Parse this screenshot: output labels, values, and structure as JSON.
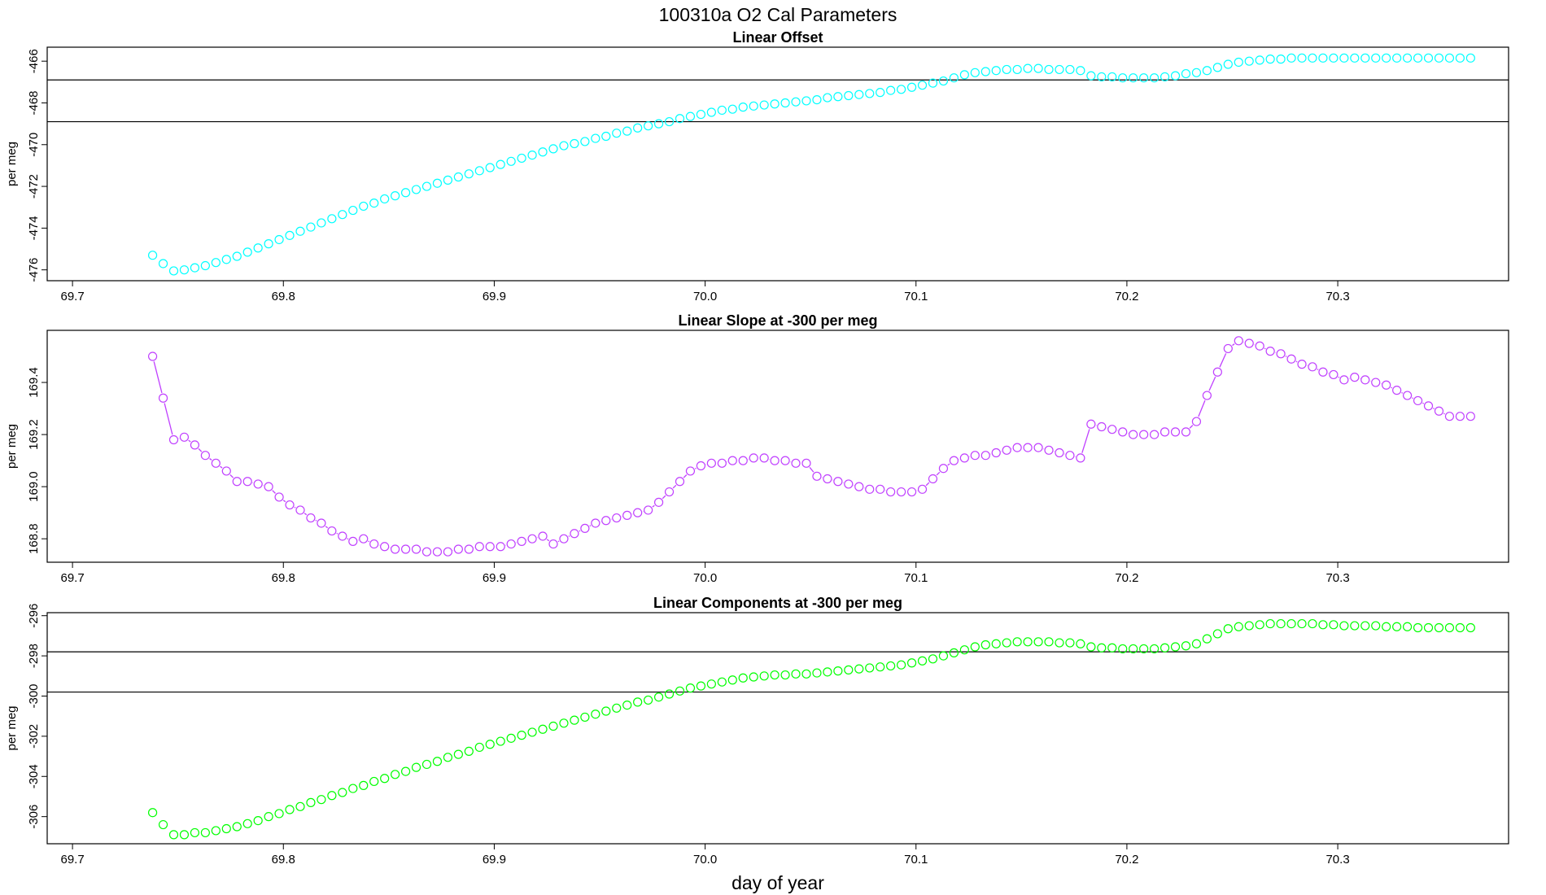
{
  "title": "100310a   O2 Cal Parameters",
  "xlabel": "day of year",
  "chart_data": [
    {
      "type": "scatter",
      "title": "Linear Offset",
      "ylabel": "per meg",
      "color": "#00ffff",
      "connect": false,
      "xlim": [
        69.688,
        70.381
      ],
      "xticks": [
        69.7,
        69.8,
        69.9,
        {
          "value": 70,
          "label": "70.0"
        },
        70.1,
        70.2,
        70.3
      ],
      "ylim": [
        -476.52,
        -465.33
      ],
      "yticks": [
        -476,
        -474,
        -472,
        -470,
        -468,
        -466
      ],
      "hlines": [
        -466.9,
        -468.9
      ],
      "x": [
        69.738,
        69.743,
        69.748,
        69.753,
        69.758,
        69.763,
        69.768,
        69.773,
        69.778,
        69.783,
        69.788,
        69.793,
        69.798,
        69.803,
        69.808,
        69.813,
        69.818,
        69.823,
        69.828,
        69.833,
        69.838,
        69.843,
        69.848,
        69.853,
        69.858,
        69.863,
        69.868,
        69.873,
        69.878,
        69.883,
        69.888,
        69.893,
        69.898,
        69.903,
        69.908,
        69.913,
        69.918,
        69.923,
        69.928,
        69.933,
        69.938,
        69.943,
        69.948,
        69.953,
        69.958,
        69.963,
        69.968,
        69.973,
        69.978,
        69.983,
        69.988,
        69.993,
        69.998,
        70.003,
        70.008,
        70.013,
        70.018,
        70.023,
        70.028,
        70.033,
        70.038,
        70.043,
        70.048,
        70.053,
        70.058,
        70.063,
        70.068,
        70.073,
        70.078,
        70.083,
        70.088,
        70.093,
        70.098,
        70.103,
        70.108,
        70.113,
        70.118,
        70.123,
        70.128,
        70.133,
        70.138,
        70.143,
        70.148,
        70.153,
        70.158,
        70.163,
        70.168,
        70.173,
        70.178,
        70.183,
        70.188,
        70.193,
        70.198,
        70.203,
        70.208,
        70.213,
        70.218,
        70.223,
        70.228,
        70.233,
        70.238,
        70.243,
        70.248,
        70.253,
        70.258,
        70.263,
        70.268,
        70.273,
        70.278,
        70.283,
        70.288,
        70.293,
        70.298,
        70.303,
        70.308,
        70.313,
        70.318,
        70.323,
        70.328,
        70.333,
        70.338,
        70.343,
        70.348,
        70.353,
        70.358,
        70.363
      ],
      "values": [
        -475.3,
        -475.7,
        -476.05,
        -476.0,
        -475.9,
        -475.8,
        -475.65,
        -475.5,
        -475.35,
        -475.15,
        -474.95,
        -474.75,
        -474.55,
        -474.35,
        -474.15,
        -473.95,
        -473.75,
        -473.55,
        -473.35,
        -473.15,
        -472.95,
        -472.8,
        -472.6,
        -472.45,
        -472.3,
        -472.15,
        -472.0,
        -471.85,
        -471.7,
        -471.55,
        -471.4,
        -471.25,
        -471.1,
        -470.95,
        -470.8,
        -470.65,
        -470.5,
        -470.35,
        -470.2,
        -470.05,
        -469.95,
        -469.85,
        -469.7,
        -469.6,
        -469.45,
        -469.35,
        -469.2,
        -469.1,
        -469.0,
        -468.9,
        -468.75,
        -468.65,
        -468.55,
        -468.45,
        -468.35,
        -468.3,
        -468.2,
        -468.15,
        -468.1,
        -468.05,
        -468.0,
        -467.95,
        -467.9,
        -467.85,
        -467.75,
        -467.7,
        -467.65,
        -467.6,
        -467.55,
        -467.5,
        -467.4,
        -467.35,
        -467.25,
        -467.15,
        -467.05,
        -466.95,
        -466.8,
        -466.65,
        -466.55,
        -466.5,
        -466.45,
        -466.4,
        -466.4,
        -466.35,
        -466.35,
        -466.4,
        -466.4,
        -466.4,
        -466.45,
        -466.7,
        -466.75,
        -466.75,
        -466.8,
        -466.8,
        -466.8,
        -466.8,
        -466.75,
        -466.7,
        -466.6,
        -466.55,
        -466.45,
        -466.3,
        -466.15,
        -466.05,
        -466.0,
        -465.95,
        -465.9,
        -465.9,
        -465.85,
        -465.85,
        -465.85,
        -465.85,
        -465.85,
        -465.85,
        -465.85,
        -465.85,
        -465.85,
        -465.85,
        -465.85,
        -465.85,
        -465.85,
        -465.85,
        -465.85,
        -465.85,
        -465.85,
        -465.85
      ]
    },
    {
      "type": "scatter",
      "title": "Linear Slope at -300 per meg",
      "ylabel": "per meg",
      "color": "#c040ff",
      "connect": true,
      "xlim": [
        69.688,
        70.381
      ],
      "xticks": [
        69.7,
        69.8,
        69.9,
        {
          "value": 70,
          "label": "70.0"
        },
        70.1,
        70.2,
        70.3
      ],
      "ylim": [
        168.71,
        169.6
      ],
      "yticks": [
        168.8,
        {
          "value": 169,
          "label": "169.0"
        },
        169.2,
        169.4
      ],
      "x": [
        69.738,
        69.743,
        69.748,
        69.753,
        69.758,
        69.763,
        69.768,
        69.773,
        69.778,
        69.783,
        69.788,
        69.793,
        69.798,
        69.803,
        69.808,
        69.813,
        69.818,
        69.823,
        69.828,
        69.833,
        69.838,
        69.843,
        69.848,
        69.853,
        69.858,
        69.863,
        69.868,
        69.873,
        69.878,
        69.883,
        69.888,
        69.893,
        69.898,
        69.903,
        69.908,
        69.913,
        69.918,
        69.923,
        69.928,
        69.933,
        69.938,
        69.943,
        69.948,
        69.953,
        69.958,
        69.963,
        69.968,
        69.973,
        69.978,
        69.983,
        69.988,
        69.993,
        69.998,
        70.003,
        70.008,
        70.013,
        70.018,
        70.023,
        70.028,
        70.033,
        70.038,
        70.043,
        70.048,
        70.053,
        70.058,
        70.063,
        70.068,
        70.073,
        70.078,
        70.083,
        70.088,
        70.093,
        70.098,
        70.103,
        70.108,
        70.113,
        70.118,
        70.123,
        70.128,
        70.133,
        70.138,
        70.143,
        70.148,
        70.153,
        70.158,
        70.163,
        70.168,
        70.173,
        70.178,
        70.183,
        70.188,
        70.193,
        70.198,
        70.203,
        70.208,
        70.213,
        70.218,
        70.223,
        70.228,
        70.233,
        70.238,
        70.243,
        70.248,
        70.253,
        70.258,
        70.263,
        70.268,
        70.273,
        70.278,
        70.283,
        70.288,
        70.293,
        70.298,
        70.303,
        70.308,
        70.313,
        70.318,
        70.323,
        70.328,
        70.333,
        70.338,
        70.343,
        70.348,
        70.353,
        70.358,
        70.363
      ],
      "values": [
        169.5,
        169.34,
        169.18,
        169.19,
        169.16,
        169.12,
        169.09,
        169.06,
        169.02,
        169.02,
        169.01,
        169.0,
        168.96,
        168.93,
        168.91,
        168.88,
        168.86,
        168.83,
        168.81,
        168.79,
        168.8,
        168.78,
        168.77,
        168.76,
        168.76,
        168.76,
        168.75,
        168.75,
        168.75,
        168.76,
        168.76,
        168.77,
        168.77,
        168.77,
        168.78,
        168.79,
        168.8,
        168.81,
        168.78,
        168.8,
        168.82,
        168.84,
        168.86,
        168.87,
        168.88,
        168.89,
        168.9,
        168.91,
        168.94,
        168.98,
        169.02,
        169.06,
        169.08,
        169.09,
        169.09,
        169.1,
        169.1,
        169.11,
        169.11,
        169.1,
        169.1,
        169.09,
        169.09,
        169.04,
        169.03,
        169.02,
        169.01,
        169.0,
        168.99,
        168.99,
        168.98,
        168.98,
        168.98,
        168.99,
        169.03,
        169.07,
        169.1,
        169.11,
        169.12,
        169.12,
        169.13,
        169.14,
        169.15,
        169.15,
        169.15,
        169.14,
        169.13,
        169.12,
        169.11,
        169.24,
        169.23,
        169.22,
        169.21,
        169.2,
        169.2,
        169.2,
        169.21,
        169.21,
        169.21,
        169.25,
        169.35,
        169.44,
        169.53,
        169.56,
        169.55,
        169.54,
        169.52,
        169.51,
        169.49,
        169.47,
        169.46,
        169.44,
        169.43,
        169.41,
        169.42,
        169.41,
        169.4,
        169.39,
        169.37,
        169.35,
        169.33,
        169.31,
        169.29,
        169.27,
        169.27,
        169.27
      ]
    },
    {
      "type": "scatter",
      "title": "Linear Components at -300 per meg",
      "ylabel": "per meg",
      "color": "#00ff00",
      "connect": false,
      "xlim": [
        69.688,
        70.381
      ],
      "xticks": [
        69.7,
        69.8,
        69.9,
        {
          "value": 70,
          "label": "70.0"
        },
        70.1,
        70.2,
        70.3
      ],
      "ylim": [
        -307.35,
        -295.85
      ],
      "yticks": [
        -306,
        -304,
        -302,
        -300,
        -298,
        -296
      ],
      "hlines": [
        -297.8,
        -299.8
      ],
      "x": [
        69.738,
        69.743,
        69.748,
        69.753,
        69.758,
        69.763,
        69.768,
        69.773,
        69.778,
        69.783,
        69.788,
        69.793,
        69.798,
        69.803,
        69.808,
        69.813,
        69.818,
        69.823,
        69.828,
        69.833,
        69.838,
        69.843,
        69.848,
        69.853,
        69.858,
        69.863,
        69.868,
        69.873,
        69.878,
        69.883,
        69.888,
        69.893,
        69.898,
        69.903,
        69.908,
        69.913,
        69.918,
        69.923,
        69.928,
        69.933,
        69.938,
        69.943,
        69.948,
        69.953,
        69.958,
        69.963,
        69.968,
        69.973,
        69.978,
        69.983,
        69.988,
        69.993,
        69.998,
        70.003,
        70.008,
        70.013,
        70.018,
        70.023,
        70.028,
        70.033,
        70.038,
        70.043,
        70.048,
        70.053,
        70.058,
        70.063,
        70.068,
        70.073,
        70.078,
        70.083,
        70.088,
        70.093,
        70.098,
        70.103,
        70.108,
        70.113,
        70.118,
        70.123,
        70.128,
        70.133,
        70.138,
        70.143,
        70.148,
        70.153,
        70.158,
        70.163,
        70.168,
        70.173,
        70.178,
        70.183,
        70.188,
        70.193,
        70.198,
        70.203,
        70.208,
        70.213,
        70.218,
        70.223,
        70.228,
        70.233,
        70.238,
        70.243,
        70.248,
        70.253,
        70.258,
        70.263,
        70.268,
        70.273,
        70.278,
        70.283,
        70.288,
        70.293,
        70.298,
        70.303,
        70.308,
        70.313,
        70.318,
        70.323,
        70.328,
        70.333,
        70.338,
        70.343,
        70.348,
        70.353,
        70.358,
        70.363
      ],
      "values": [
        -305.8,
        -306.4,
        -306.9,
        -306.9,
        -306.8,
        -306.8,
        -306.7,
        -306.6,
        -306.5,
        -306.35,
        -306.2,
        -306.0,
        -305.85,
        -305.65,
        -305.5,
        -305.3,
        -305.15,
        -304.95,
        -304.8,
        -304.6,
        -304.45,
        -304.25,
        -304.1,
        -303.9,
        -303.75,
        -303.55,
        -303.4,
        -303.25,
        -303.05,
        -302.9,
        -302.75,
        -302.55,
        -302.4,
        -302.25,
        -302.1,
        -301.95,
        -301.8,
        -301.65,
        -301.5,
        -301.35,
        -301.2,
        -301.05,
        -300.9,
        -300.75,
        -300.6,
        -300.45,
        -300.3,
        -300.2,
        -300.05,
        -299.9,
        -299.75,
        -299.6,
        -299.5,
        -299.4,
        -299.3,
        -299.2,
        -299.1,
        -299.05,
        -299.0,
        -298.95,
        -298.95,
        -298.9,
        -298.9,
        -298.85,
        -298.8,
        -298.75,
        -298.7,
        -298.65,
        -298.6,
        -298.55,
        -298.5,
        -298.45,
        -298.35,
        -298.25,
        -298.15,
        -298.0,
        -297.85,
        -297.7,
        -297.55,
        -297.45,
        -297.4,
        -297.35,
        -297.3,
        -297.3,
        -297.3,
        -297.3,
        -297.35,
        -297.35,
        -297.4,
        -297.55,
        -297.6,
        -297.6,
        -297.65,
        -297.65,
        -297.65,
        -297.65,
        -297.6,
        -297.55,
        -297.5,
        -297.4,
        -297.15,
        -296.9,
        -296.65,
        -296.55,
        -296.5,
        -296.45,
        -296.4,
        -296.4,
        -296.4,
        -296.4,
        -296.4,
        -296.45,
        -296.45,
        -296.5,
        -296.5,
        -296.5,
        -296.5,
        -296.55,
        -296.55,
        -296.55,
        -296.6,
        -296.6,
        -296.6,
        -296.6,
        -296.6,
        -296.6
      ]
    }
  ]
}
